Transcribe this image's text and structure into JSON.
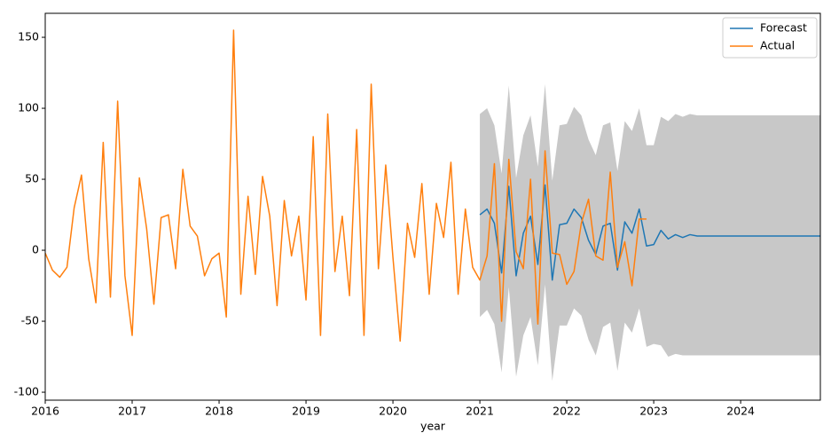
{
  "chart_data": {
    "type": "line",
    "x_label": "year",
    "x": [
      2016,
      2016.083,
      2016.167,
      2016.25,
      2016.333,
      2016.417,
      2016.5,
      2016.583,
      2016.667,
      2016.75,
      2016.833,
      2016.917,
      2017,
      2017.083,
      2017.167,
      2017.25,
      2017.333,
      2017.417,
      2017.5,
      2017.583,
      2017.667,
      2017.75,
      2017.833,
      2017.917,
      2018,
      2018.083,
      2018.167,
      2018.25,
      2018.333,
      2018.417,
      2018.5,
      2018.583,
      2018.667,
      2018.75,
      2018.833,
      2018.917,
      2019,
      2019.083,
      2019.167,
      2019.25,
      2019.333,
      2019.417,
      2019.5,
      2019.583,
      2019.667,
      2019.75,
      2019.833,
      2019.917,
      2020,
      2020.083,
      2020.167,
      2020.25,
      2020.333,
      2020.417,
      2020.5,
      2020.583,
      2020.667,
      2020.75,
      2020.833,
      2020.917,
      2021,
      2021.083,
      2021.167,
      2021.25,
      2021.333,
      2021.417,
      2021.5,
      2021.583,
      2021.667,
      2021.75,
      2021.833,
      2021.917,
      2022,
      2022.083,
      2022.167,
      2022.25,
      2022.333,
      2022.417,
      2022.5,
      2022.583,
      2022.667,
      2022.75,
      2022.833,
      2022.917,
      2023,
      2023.083,
      2023.167,
      2023.25,
      2023.333,
      2023.417,
      2023.5,
      2023.583,
      2023.667,
      2023.75,
      2023.833,
      2023.917,
      2024,
      2024.083,
      2024.167,
      2024.25,
      2024.333,
      2024.417,
      2024.5,
      2024.583,
      2024.667,
      2024.75,
      2024.833,
      2024.917
    ],
    "series": [
      {
        "name": "Forecast",
        "color": "#1f77b4",
        "values": [
          null,
          null,
          null,
          null,
          null,
          null,
          null,
          null,
          null,
          null,
          null,
          null,
          null,
          null,
          null,
          null,
          null,
          null,
          null,
          null,
          null,
          null,
          null,
          null,
          null,
          null,
          null,
          null,
          null,
          null,
          null,
          null,
          null,
          null,
          null,
          null,
          null,
          null,
          null,
          null,
          null,
          null,
          null,
          null,
          null,
          null,
          null,
          null,
          null,
          null,
          null,
          null,
          null,
          null,
          null,
          null,
          null,
          null,
          null,
          null,
          25,
          29,
          19,
          -16,
          45,
          -18,
          12,
          24,
          -10,
          46,
          -21,
          18,
          19,
          29,
          23,
          7,
          -3,
          17,
          19,
          -14,
          20,
          12,
          29,
          3,
          4,
          14,
          8,
          11,
          9,
          11,
          10,
          10,
          10,
          10,
          10,
          10,
          10,
          10,
          10,
          10,
          10,
          10,
          10,
          10,
          10,
          10,
          10,
          10
        ]
      },
      {
        "name": "Actual",
        "color": "#ff7f0e",
        "values": [
          -2,
          -14,
          -19,
          -12,
          30,
          53,
          -6,
          -37,
          76,
          -33,
          105,
          -18,
          -60,
          51,
          15,
          -38,
          23,
          25,
          -13,
          57,
          17,
          10,
          -18,
          -6,
          -2,
          -47,
          155,
          -31,
          38,
          -17,
          52,
          24,
          -39,
          35,
          -4,
          24,
          -35,
          80,
          -60,
          96,
          -15,
          24,
          -32,
          85,
          -60,
          117,
          -13,
          60,
          -5,
          -64,
          19,
          -5,
          47,
          -31,
          33,
          9,
          62,
          -31,
          29,
          -12,
          -21,
          -4,
          61,
          -50,
          64,
          -1,
          -13,
          50,
          -52,
          70,
          -2,
          -3,
          -24,
          -15,
          19,
          36,
          -4,
          -7,
          55,
          -12,
          6,
          -25,
          22,
          22,
          null,
          null,
          null,
          null,
          null,
          null,
          null,
          null,
          null,
          null,
          null,
          null,
          null,
          null,
          null,
          null,
          null,
          null,
          null,
          null,
          null,
          null,
          null,
          null
        ]
      }
    ],
    "band": {
      "color": "#c8c8c8",
      "upper": [
        null,
        null,
        null,
        null,
        null,
        null,
        null,
        null,
        null,
        null,
        null,
        null,
        null,
        null,
        null,
        null,
        null,
        null,
        null,
        null,
        null,
        null,
        null,
        null,
        null,
        null,
        null,
        null,
        null,
        null,
        null,
        null,
        null,
        null,
        null,
        null,
        null,
        null,
        null,
        null,
        null,
        null,
        null,
        null,
        null,
        null,
        null,
        null,
        null,
        null,
        null,
        null,
        null,
        null,
        null,
        null,
        null,
        null,
        null,
        null,
        96,
        100,
        88,
        54,
        116,
        51,
        81,
        95,
        59,
        117,
        49,
        88,
        89,
        101,
        95,
        78,
        67,
        88,
        90,
        56,
        91,
        84,
        100,
        74,
        74,
        94,
        91,
        96,
        94,
        96,
        95,
        95,
        95,
        95,
        95,
        95,
        95,
        95,
        95,
        95,
        95,
        95,
        95,
        95,
        95,
        95,
        95,
        95
      ],
      "lower": [
        null,
        null,
        null,
        null,
        null,
        null,
        null,
        null,
        null,
        null,
        null,
        null,
        null,
        null,
        null,
        null,
        null,
        null,
        null,
        null,
        null,
        null,
        null,
        null,
        null,
        null,
        null,
        null,
        null,
        null,
        null,
        null,
        null,
        null,
        null,
        null,
        null,
        null,
        null,
        null,
        null,
        null,
        null,
        null,
        null,
        null,
        null,
        null,
        null,
        null,
        null,
        null,
        null,
        null,
        null,
        null,
        null,
        null,
        null,
        null,
        -47,
        -42,
        -52,
        -86,
        -26,
        -89,
        -60,
        -47,
        -81,
        -24,
        -92,
        -53,
        -53,
        -41,
        -46,
        -63,
        -74,
        -54,
        -51,
        -85,
        -51,
        -58,
        -41,
        -68,
        -66,
        -67,
        -75,
        -73,
        -74,
        -74,
        -74,
        -74,
        -74,
        -74,
        -74,
        -74,
        -74,
        -74,
        -74,
        -74,
        -74,
        -74,
        -74,
        -74,
        -74,
        -74,
        -74,
        -74
      ]
    },
    "xlim": [
      2016,
      2024.917
    ],
    "xticks": [
      2016,
      2017,
      2018,
      2019,
      2020,
      2021,
      2022,
      2023,
      2024
    ],
    "ylim": [
      -105.6,
      166.9
    ],
    "yticks": [
      -100,
      -50,
      0,
      50,
      100,
      150
    ],
    "legend": "upper right"
  }
}
